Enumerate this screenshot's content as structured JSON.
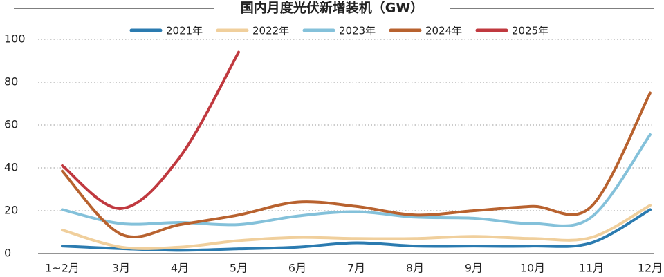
{
  "chart_data": {
    "type": "line",
    "title": "国内月度光伏新增装机（GW）",
    "categories": [
      "1~2月",
      "3月",
      "4月",
      "5月",
      "6月",
      "7月",
      "8月",
      "9月",
      "10月",
      "11月",
      "12月"
    ],
    "series": [
      {
        "name": "2021年",
        "color": "#2b7bb0",
        "values": [
          3.5,
          2.3,
          1.5,
          2.2,
          3,
          5,
          3.5,
          3.5,
          3.5,
          5,
          20.5
        ]
      },
      {
        "name": "2022年",
        "color": "#f0cf9c",
        "values": [
          11,
          3,
          3,
          6,
          7.5,
          7,
          7,
          8,
          7,
          7.5,
          22.5
        ]
      },
      {
        "name": "2023年",
        "color": "#84c1da",
        "values": [
          20.5,
          14,
          14.5,
          13.5,
          17.5,
          19.5,
          17,
          16.5,
          14,
          17,
          55.5
        ]
      },
      {
        "name": "2024年",
        "color": "#b8622f",
        "values": [
          38.5,
          9,
          13.5,
          18,
          24,
          22,
          18,
          20,
          22,
          22,
          75
        ]
      },
      {
        "name": "2025年",
        "color": "#c0393f",
        "values": [
          41,
          21,
          45,
          94,
          null,
          null,
          null,
          null,
          null,
          null,
          null
        ]
      }
    ],
    "ylim": [
      0,
      100
    ],
    "yticks": [
      0,
      20,
      40,
      60,
      80,
      100
    ],
    "grid": true
  }
}
